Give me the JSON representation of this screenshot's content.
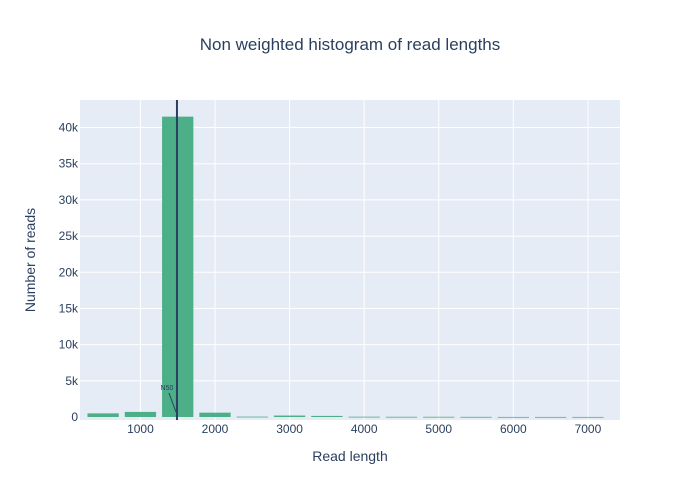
{
  "chart_data": {
    "type": "bar",
    "title": "Non weighted histogram of read lengths",
    "xlabel": "Read length",
    "ylabel": "Number of reads",
    "bin_width": 500,
    "bins": [
      {
        "x0": 250,
        "x1": 750,
        "value": 500
      },
      {
        "x0": 750,
        "x1": 1250,
        "value": 700
      },
      {
        "x0": 1250,
        "x1": 1750,
        "value": 41500
      },
      {
        "x0": 1750,
        "x1": 2250,
        "value": 600
      },
      {
        "x0": 2250,
        "x1": 2750,
        "value": 50
      },
      {
        "x0": 2750,
        "x1": 3250,
        "value": 200
      },
      {
        "x0": 3250,
        "x1": 3750,
        "value": 150
      },
      {
        "x0": 3750,
        "x1": 4250,
        "value": 40
      },
      {
        "x0": 4250,
        "x1": 4750,
        "value": 30
      },
      {
        "x0": 4750,
        "x1": 5250,
        "value": 30
      },
      {
        "x0": 5250,
        "x1": 5750,
        "value": 20
      },
      {
        "x0": 5750,
        "x1": 6250,
        "value": 10
      },
      {
        "x0": 6250,
        "x1": 6750,
        "value": 10
      },
      {
        "x0": 6750,
        "x1": 7250,
        "value": 10
      }
    ],
    "xlim": [
      190,
      7430
    ],
    "ylim": [
      0,
      43800
    ],
    "xticks": [
      1000,
      2000,
      3000,
      4000,
      5000,
      6000,
      7000
    ],
    "xtick_labels": [
      "1000",
      "2000",
      "3000",
      "4000",
      "5000",
      "6000",
      "7000"
    ],
    "yticks": [
      0,
      5000,
      10000,
      15000,
      20000,
      25000,
      30000,
      35000,
      40000
    ],
    "ytick_labels": [
      "0",
      "5k",
      "10k",
      "15k",
      "20k",
      "25k",
      "30k",
      "35k",
      "40k"
    ],
    "vline": {
      "x": 1490,
      "label": "N50"
    },
    "grid": true,
    "colors": {
      "bar": "#4caf87",
      "plot_bg": "#e5ecf6",
      "grid": "#ffffff",
      "vline": "#2a3f5f",
      "text": "#2a3f5f"
    }
  }
}
